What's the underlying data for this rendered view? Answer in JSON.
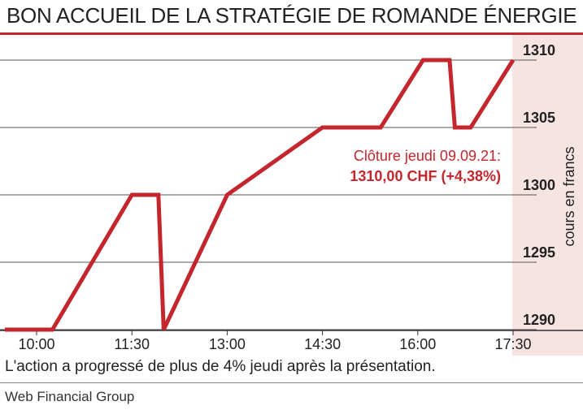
{
  "title": "BON ACCUEIL DE LA STRATÉGIE DE ROMANDE ÉNERGIE",
  "caption": "L'action a progressé de plus de 4% jeudi après la présentation.",
  "source": "Web Financial Group",
  "chart_data": {
    "type": "line",
    "title": "BON ACCUEIL DE LA STRATÉGIE DE ROMANDE ÉNERGIE",
    "xlabel": "",
    "ylabel": "cours en francs",
    "x_ticks": [
      "10:00",
      "11:30",
      "13:00",
      "14:30",
      "16:00",
      "17:30"
    ],
    "x_range": [
      "09:30",
      "17:45"
    ],
    "y_ticks": [
      1290,
      1295,
      1300,
      1305,
      1310
    ],
    "ylim": [
      1290,
      1310
    ],
    "grid": "horizontal",
    "series": [
      {
        "color": "#c4262e",
        "x": [
          "09:30",
          "10:15",
          "11:30",
          "11:55",
          "12:00",
          "13:00",
          "14:30",
          "15:25",
          "16:05",
          "16:30",
          "16:35",
          "16:50",
          "17:30"
        ],
        "y": [
          1290,
          1290,
          1300,
          1300,
          1290,
          1300,
          1305,
          1305,
          1310,
          1310,
          1305,
          1305,
          1310
        ]
      }
    ],
    "annotations": [
      {
        "text": "Clôture jeudi 09.09.21:",
        "x": "17:20",
        "y": 1303.5
      },
      {
        "text": "1310,00 CHF (+4,38%)",
        "x": "17:20",
        "y": 1302.2
      }
    ],
    "colors": {
      "line": "#c4262e",
      "axis_band": "#f6e4e3",
      "grid": "#555555",
      "accent": "#c4262e"
    }
  }
}
